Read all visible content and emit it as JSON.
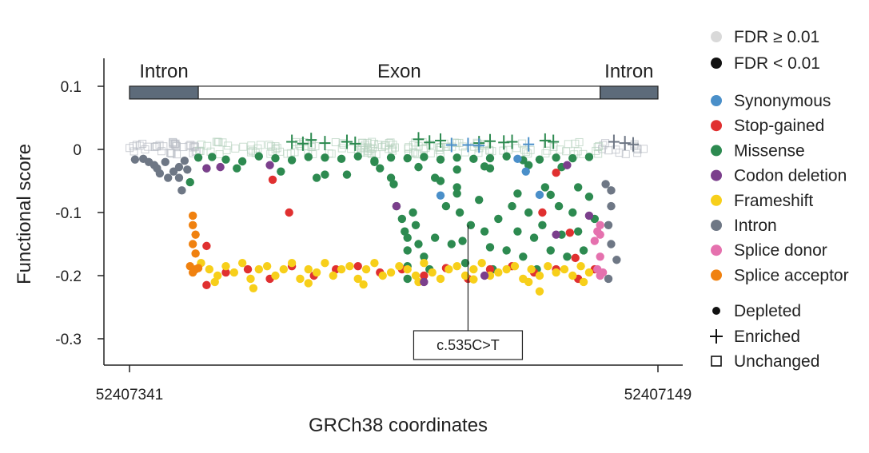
{
  "chart_data": {
    "type": "scatter",
    "xlabel": "GRCh38 coordinates",
    "ylabel": "Functional score",
    "xlim": [
      52407341,
      52407149
    ],
    "ylim": [
      -0.34,
      0.14
    ],
    "x_tick_labels": [
      "52407341",
      "52407149"
    ],
    "y_ticks": [
      0.1,
      0,
      -0.1,
      -0.2,
      -0.3
    ],
    "y_tick_labels": [
      "0.1",
      "0",
      "-0.1",
      "-0.2",
      "-0.3"
    ],
    "gene_structure": {
      "score_level": 0.09,
      "regions": [
        {
          "label": "Intron",
          "start": 52407341,
          "end": 52407316
        },
        {
          "label": "Exon",
          "start": 52407316,
          "end": 52407170
        },
        {
          "label": "Intron",
          "start": 52407170,
          "end": 52407149
        }
      ]
    },
    "annotation": {
      "label": "c.535C>T",
      "x": 52407218,
      "y": -0.12
    },
    "colors": {
      "Synonymous": "#4a8fc9",
      "Stop-gained": "#e03030",
      "Missense": "#2d8a50",
      "Codon deletion": "#7b3f8c",
      "Frameshift": "#f7cf1a",
      "Intron": "#6e7785",
      "Splice donor": "#e571ae",
      "Splice acceptor": "#f0810f",
      "fdr_low": "#d9d9d9",
      "fdr_high": "#111111"
    },
    "legend": {
      "fdr": [
        "FDR ≥ 0.01",
        "FDR < 0.01"
      ],
      "categories": [
        "Synonymous",
        "Stop-gained",
        "Missense",
        "Codon deletion",
        "Frameshift",
        "Intron",
        "Splice donor",
        "Splice acceptor"
      ],
      "shapes": [
        "Depleted",
        "Enriched",
        "Unchanged"
      ]
    },
    "series": [
      {
        "name": "Missense",
        "shape": "depleted",
        "points": [
          [
            52407316,
            -0.013
          ],
          [
            52407311,
            -0.012
          ],
          [
            52407306,
            -0.016
          ],
          [
            52407300,
            -0.019
          ],
          [
            52407294,
            -0.011
          ],
          [
            52407288,
            -0.014
          ],
          [
            52407282,
            -0.017
          ],
          [
            52407276,
            -0.012
          ],
          [
            52407270,
            -0.013
          ],
          [
            52407264,
            -0.015
          ],
          [
            52407258,
            -0.011
          ],
          [
            52407252,
            -0.018
          ],
          [
            52407246,
            -0.013
          ],
          [
            52407240,
            -0.014
          ],
          [
            52407234,
            -0.012
          ],
          [
            52407228,
            -0.016
          ],
          [
            52407222,
            -0.013
          ],
          [
            52407216,
            -0.015
          ],
          [
            52407210,
            -0.014
          ],
          [
            52407204,
            -0.011
          ],
          [
            52407198,
            -0.017
          ],
          [
            52407192,
            -0.016
          ],
          [
            52407186,
            -0.013
          ],
          [
            52407180,
            -0.014
          ],
          [
            52407174,
            -0.012
          ],
          [
            52407313,
            -0.03
          ],
          [
            52407302,
            -0.03
          ],
          [
            52407286,
            -0.035
          ],
          [
            52407270,
            -0.04
          ],
          [
            52407252,
            -0.02
          ],
          [
            52407246,
            -0.045
          ],
          [
            52407236,
            -0.028
          ],
          [
            52407222,
            -0.032
          ],
          [
            52407212,
            -0.027
          ],
          [
            52407196,
            -0.025
          ],
          [
            52407184,
            -0.028
          ],
          [
            52407319,
            -0.052
          ],
          [
            52407273,
            -0.045
          ],
          [
            52407262,
            -0.04
          ],
          [
            52407250,
            -0.03
          ],
          [
            52407245,
            -0.055
          ],
          [
            52407230,
            -0.045
          ],
          [
            52407222,
            -0.06
          ],
          [
            52407210,
            -0.03
          ],
          [
            52407200,
            -0.07
          ],
          [
            52407188,
            -0.072
          ],
          [
            52407178,
            -0.06
          ],
          [
            52407244,
            -0.09
          ],
          [
            52407242,
            -0.11
          ],
          [
            52407241,
            -0.13
          ],
          [
            52407240,
            -0.14
          ],
          [
            52407240,
            -0.16
          ],
          [
            52407240,
            -0.185
          ],
          [
            52407240,
            -0.205
          ],
          [
            52407238,
            -0.1
          ],
          [
            52407237,
            -0.12
          ],
          [
            52407236,
            -0.15
          ],
          [
            52407234,
            -0.17
          ],
          [
            52407232,
            -0.19
          ],
          [
            52407230,
            -0.14
          ],
          [
            52407228,
            -0.05
          ],
          [
            52407226,
            -0.09
          ],
          [
            52407224,
            -0.15
          ],
          [
            52407222,
            -0.07
          ],
          [
            52407221,
            -0.1
          ],
          [
            52407220,
            -0.145
          ],
          [
            52407219,
            -0.18
          ],
          [
            52407217,
            -0.12
          ],
          [
            52407214,
            -0.08
          ],
          [
            52407212,
            -0.13
          ],
          [
            52407210,
            -0.155
          ],
          [
            52407209,
            -0.19
          ],
          [
            52407207,
            -0.11
          ],
          [
            52407204,
            -0.16
          ],
          [
            52407202,
            -0.09
          ],
          [
            52407200,
            -0.13
          ],
          [
            52407198,
            -0.17
          ],
          [
            52407196,
            -0.1
          ],
          [
            52407194,
            -0.14
          ],
          [
            52407193,
            -0.19
          ],
          [
            52407191,
            -0.12
          ],
          [
            52407190,
            -0.06
          ],
          [
            52407188,
            -0.16
          ],
          [
            52407185,
            -0.09
          ],
          [
            52407184,
            -0.135
          ],
          [
            52407182,
            -0.17
          ],
          [
            52407180,
            -0.1
          ],
          [
            52407178,
            -0.13
          ],
          [
            52407176,
            -0.16
          ],
          [
            52407174,
            -0.075
          ],
          [
            52407172,
            -0.11
          ]
        ]
      },
      {
        "name": "Missense",
        "shape": "enriched",
        "points": [
          [
            52407282,
            0.012
          ],
          [
            52407278,
            0.009
          ],
          [
            52407275,
            0.015
          ],
          [
            52407270,
            0.01
          ],
          [
            52407262,
            0.012
          ],
          [
            52407259,
            0.009
          ],
          [
            52407236,
            0.016
          ],
          [
            52407232,
            0.011
          ],
          [
            52407228,
            0.014
          ],
          [
            52407214,
            0.01
          ],
          [
            52407210,
            0.013
          ],
          [
            52407205,
            0.011
          ],
          [
            52407202,
            0.012
          ],
          [
            52407190,
            0.014
          ],
          [
            52407187,
            0.012
          ]
        ]
      },
      {
        "name": "Synonymous",
        "shape": "depleted",
        "points": [
          [
            52407228,
            -0.073
          ],
          [
            52407200,
            -0.015
          ],
          [
            52407197,
            -0.035
          ],
          [
            52407192,
            -0.072
          ]
        ]
      },
      {
        "name": "Synonymous",
        "shape": "enriched",
        "points": [
          [
            52407224,
            0.007
          ],
          [
            52407218,
            0.007
          ],
          [
            52407214,
            0.006
          ],
          [
            52407196,
            0.008
          ]
        ]
      },
      {
        "name": "Stop-gained",
        "shape": "depleted",
        "points": [
          [
            52407313,
            -0.153
          ],
          [
            52407313,
            -0.215
          ],
          [
            52407289,
            -0.048
          ],
          [
            52407283,
            -0.1
          ],
          [
            52407191,
            -0.1
          ],
          [
            52407186,
            -0.037
          ],
          [
            52407181,
            -0.132
          ],
          [
            52407179,
            -0.172
          ],
          [
            52407306,
            -0.195
          ],
          [
            52407298,
            -0.19
          ],
          [
            52407290,
            -0.205
          ],
          [
            52407282,
            -0.185
          ],
          [
            52407274,
            -0.2
          ],
          [
            52407266,
            -0.19
          ],
          [
            52407258,
            -0.185
          ],
          [
            52407250,
            -0.195
          ],
          [
            52407242,
            -0.19
          ],
          [
            52407234,
            -0.2
          ],
          [
            52407226,
            -0.188
          ],
          [
            52407218,
            -0.205
          ],
          [
            52407210,
            -0.19
          ],
          [
            52407202,
            -0.185
          ],
          [
            52407194,
            -0.195
          ],
          [
            52407186,
            -0.19
          ],
          [
            52407178,
            -0.205
          ],
          [
            52407172,
            -0.19
          ]
        ]
      },
      {
        "name": "Frameshift",
        "shape": "depleted",
        "points": [
          [
            52407315,
            -0.18
          ],
          [
            52407312,
            -0.19
          ],
          [
            52407309,
            -0.2
          ],
          [
            52407306,
            -0.185
          ],
          [
            52407303,
            -0.195
          ],
          [
            52407300,
            -0.18
          ],
          [
            52407297,
            -0.205
          ],
          [
            52407294,
            -0.19
          ],
          [
            52407291,
            -0.185
          ],
          [
            52407288,
            -0.2
          ],
          [
            52407285,
            -0.19
          ],
          [
            52407282,
            -0.18
          ],
          [
            52407279,
            -0.205
          ],
          [
            52407276,
            -0.19
          ],
          [
            52407273,
            -0.195
          ],
          [
            52407270,
            -0.18
          ],
          [
            52407267,
            -0.2
          ],
          [
            52407264,
            -0.19
          ],
          [
            52407261,
            -0.185
          ],
          [
            52407258,
            -0.205
          ],
          [
            52407255,
            -0.19
          ],
          [
            52407252,
            -0.18
          ],
          [
            52407249,
            -0.2
          ],
          [
            52407246,
            -0.195
          ],
          [
            52407243,
            -0.185
          ],
          [
            52407240,
            -0.19
          ],
          [
            52407237,
            -0.2
          ],
          [
            52407234,
            -0.18
          ],
          [
            52407231,
            -0.195
          ],
          [
            52407228,
            -0.205
          ],
          [
            52407225,
            -0.19
          ],
          [
            52407222,
            -0.185
          ],
          [
            52407219,
            -0.2
          ],
          [
            52407216,
            -0.19
          ],
          [
            52407213,
            -0.18
          ],
          [
            52407210,
            -0.2
          ],
          [
            52407207,
            -0.195
          ],
          [
            52407204,
            -0.19
          ],
          [
            52407201,
            -0.185
          ],
          [
            52407198,
            -0.205
          ],
          [
            52407195,
            -0.19
          ],
          [
            52407192,
            -0.2
          ],
          [
            52407189,
            -0.185
          ],
          [
            52407186,
            -0.195
          ],
          [
            52407183,
            -0.19
          ],
          [
            52407180,
            -0.2
          ],
          [
            52407177,
            -0.185
          ],
          [
            52407174,
            -0.195
          ],
          [
            52407310,
            -0.21
          ],
          [
            52407296,
            -0.22
          ],
          [
            52407276,
            -0.212
          ],
          [
            52407256,
            -0.214
          ],
          [
            52407236,
            -0.21
          ],
          [
            52407216,
            -0.206
          ],
          [
            52407196,
            -0.21
          ],
          [
            52407176,
            -0.21
          ],
          [
            52407192,
            -0.225
          ]
        ]
      },
      {
        "name": "Codon deletion",
        "shape": "depleted",
        "points": [
          [
            52407313,
            -0.03
          ],
          [
            52407308,
            -0.028
          ],
          [
            52407290,
            -0.025
          ],
          [
            52407244,
            -0.09
          ],
          [
            52407234,
            -0.21
          ],
          [
            52407212,
            -0.2
          ],
          [
            52407186,
            -0.135
          ],
          [
            52407182,
            -0.025
          ],
          [
            52407174,
            -0.105
          ]
        ]
      },
      {
        "name": "Intron",
        "shape": "depleted",
        "points": [
          [
            52407339,
            -0.016
          ],
          [
            52407336,
            -0.015
          ],
          [
            52407334,
            -0.02
          ],
          [
            52407332,
            -0.025
          ],
          [
            52407331,
            -0.03
          ],
          [
            52407330,
            -0.038
          ],
          [
            52407328,
            -0.02
          ],
          [
            52407327,
            -0.045
          ],
          [
            52407325,
            -0.035
          ],
          [
            52407323,
            -0.028
          ],
          [
            52407321,
            -0.018
          ],
          [
            52407320,
            -0.032
          ],
          [
            52407323,
            -0.045
          ],
          [
            52407322,
            -0.065
          ],
          [
            52407166,
            -0.09
          ],
          [
            52407167,
            -0.12
          ],
          [
            52407166,
            -0.15
          ],
          [
            52407164,
            -0.175
          ],
          [
            52407167,
            -0.205
          ],
          [
            52407168,
            -0.055
          ],
          [
            52407166,
            -0.065
          ]
        ]
      },
      {
        "name": "Intron",
        "shape": "enriched",
        "points": [
          [
            52407165,
            0.012
          ],
          [
            52407161,
            0.01
          ],
          [
            52407158,
            0.008
          ]
        ]
      },
      {
        "name": "Splice donor",
        "shape": "depleted",
        "points": [
          [
            52407170,
            -0.12
          ],
          [
            52407171,
            -0.13
          ],
          [
            52407170,
            -0.135
          ],
          [
            52407172,
            -0.145
          ],
          [
            52407170,
            -0.17
          ],
          [
            52407171,
            -0.19
          ],
          [
            52407169,
            -0.195
          ],
          [
            52407170,
            -0.2
          ]
        ]
      },
      {
        "name": "Splice acceptor",
        "shape": "depleted",
        "points": [
          [
            52407318,
            -0.105
          ],
          [
            52407318,
            -0.12
          ],
          [
            52407317,
            -0.135
          ],
          [
            52407318,
            -0.15
          ],
          [
            52407317,
            -0.165
          ],
          [
            52407319,
            -0.185
          ],
          [
            52407317,
            -0.19
          ],
          [
            52407318,
            -0.195
          ],
          [
            52407316,
            -0.188
          ]
        ]
      }
    ]
  }
}
